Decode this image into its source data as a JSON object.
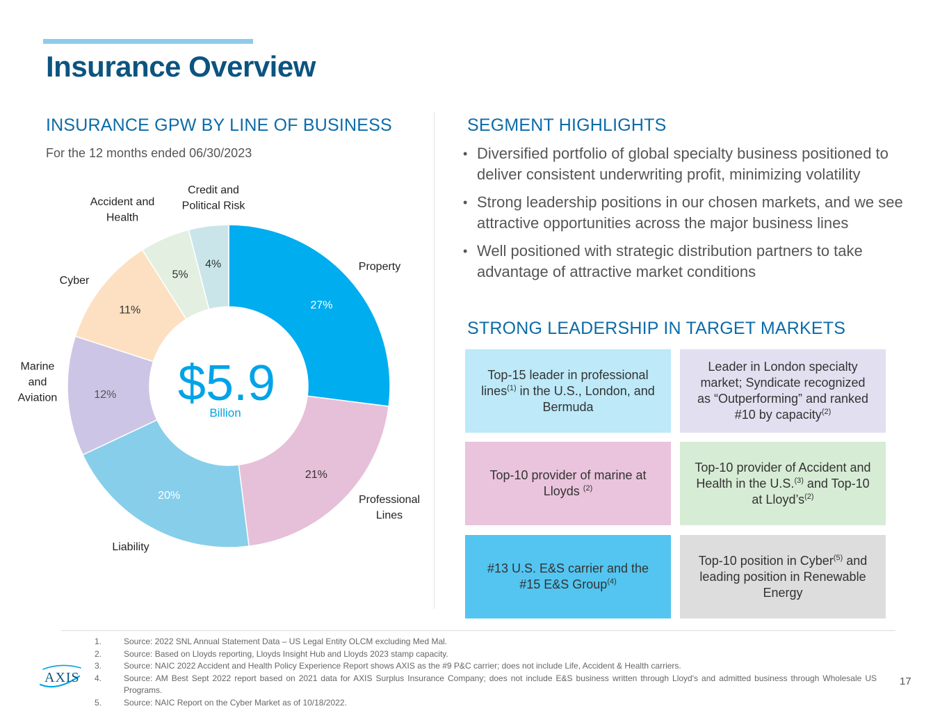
{
  "title": "Insurance Overview",
  "left_section": {
    "heading": "INSURANCE GPW BY LINE OF BUSINESS",
    "subheading": "For the 12 months ended 06/30/2023",
    "center_value": "$5.9",
    "center_unit": "Billion"
  },
  "chart_data": {
    "type": "pie",
    "variant": "donut",
    "title": "INSURANCE GPW BY LINE OF BUSINESS",
    "total_label": "$5.9 Billion",
    "slices": [
      {
        "name": "Property",
        "label_lines": [
          "Property"
        ],
        "value": 27,
        "label": "27%",
        "color": "#00adef",
        "text_color": "#ffffff"
      },
      {
        "name": "Professional Lines",
        "label_lines": [
          "Professional",
          "Lines"
        ],
        "value": 21,
        "label": "21%",
        "color": "#e6bfd8",
        "text_color": "#333333"
      },
      {
        "name": "Liability",
        "label_lines": [
          "Liability"
        ],
        "value": 20,
        "label": "20%",
        "color": "#87ceeb",
        "text_color": "#ffffff"
      },
      {
        "name": "Marine and Aviation",
        "label_lines": [
          "Marine",
          "and",
          "Aviation"
        ],
        "value": 12,
        "label": "12%",
        "color": "#ccc5e5",
        "text_color": "#555555"
      },
      {
        "name": "Cyber",
        "label_lines": [
          "Cyber"
        ],
        "value": 11,
        "label": "11%",
        "color": "#fde0c1",
        "text_color": "#333333"
      },
      {
        "name": "Accident and Health",
        "label_lines": [
          "Accident and",
          "Health"
        ],
        "value": 5,
        "label": "5%",
        "color": "#e3f0e1",
        "text_color": "#333333"
      },
      {
        "name": "Credit and Political Risk",
        "label_lines": [
          "Credit and",
          "Political Risk"
        ],
        "value": 4,
        "label": "4%",
        "color": "#c9e5ea",
        "text_color": "#333333"
      }
    ]
  },
  "right_section": {
    "highlights_heading": "SEGMENT HIGHLIGHTS",
    "bullets": [
      "Diversified portfolio of global specialty business positioned to deliver consistent underwriting profit, minimizing volatility",
      "Strong leadership positions in our chosen markets, and we see attractive opportunities across the major business lines",
      "Well positioned with strategic distribution partners to take advantage of attractive market conditions"
    ],
    "leadership_heading": "STRONG LEADERSHIP IN TARGET MARKETS",
    "boxes": [
      {
        "bg": "#bde9f8",
        "parts": [
          {
            "t": "Top-15 leader in professional lines"
          },
          {
            "t": "(1)",
            "sup": true
          },
          {
            "t": " in the U.S., London, and Bermuda"
          }
        ]
      },
      {
        "bg": "#e2e0f0",
        "parts": [
          {
            "t": "Leader in London specialty market; Syndicate recognized as “Outperforming” and ranked #10 by capacity"
          },
          {
            "t": "(2)",
            "sup": true
          }
        ]
      },
      {
        "bg": "#e9c4dc",
        "parts": [
          {
            "t": "Top-10 provider of marine at Lloyds "
          },
          {
            "t": "(2)",
            "sup": true
          }
        ]
      },
      {
        "bg": "#d7ecd5",
        "parts": [
          {
            "t": "Top-10 provider of Accident and Health in the U.S."
          },
          {
            "t": "(3)",
            "sup": true
          },
          {
            "t": " and Top-10 at Lloyd’s"
          },
          {
            "t": "(2)",
            "sup": true
          }
        ]
      },
      {
        "bg": "#53c5f0",
        "parts": [
          {
            "t": "#13 U.S. E&S carrier and the #15 E&S Group"
          },
          {
            "t": "(4)",
            "sup": true
          }
        ]
      },
      {
        "bg": "#dddddd",
        "parts": [
          {
            "t": "Top-10 position in Cyber"
          },
          {
            "t": "(5)",
            "sup": true
          },
          {
            "t": " and leading position in Renewable Energy"
          }
        ]
      }
    ]
  },
  "footnotes": [
    {
      "num": "1.",
      "text": "Source: 2022 SNL Annual Statement Data – US Legal Entity OLCM excluding Med Mal."
    },
    {
      "num": "2.",
      "text": "Source: Based on Lloyds reporting, Lloyds Insight Hub and Lloyds 2023 stamp capacity."
    },
    {
      "num": "3.",
      "text": "Source: NAIC 2022 Accident and Health Policy Experience Report shows AXIS as the #9 P&C carrier; does not include Life, Accident & Health carriers."
    },
    {
      "num": "4.",
      "text": "Source: AM Best Sept 2022 report based on 2021 data for AXIS Surplus Insurance Company; does not include E&S business written through Lloyd's and admitted business through Wholesale US Programs."
    },
    {
      "num": "5.",
      "text": "Source: NAIC Report on the Cyber Market as of 10/18/2022."
    }
  ],
  "logo_text": "AXIS",
  "page_number": "17",
  "colors": {
    "title": "#0c5480",
    "heading": "#0c6ba8",
    "accent": "#8ecbea",
    "center_value": "#00a3e8"
  }
}
